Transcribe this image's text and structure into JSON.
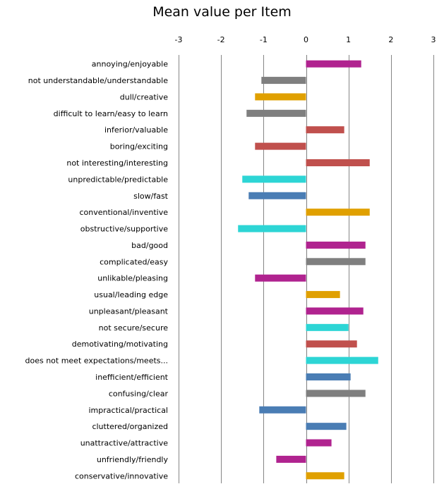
{
  "chart_data": {
    "type": "bar",
    "orientation": "horizontal",
    "title": "Mean value per Item",
    "xlabel": "",
    "ylabel": "",
    "xlim": [
      -3,
      3
    ],
    "xticks": [
      "-3",
      "-2",
      "-1",
      "0",
      "1",
      "2",
      "3"
    ],
    "grid": true,
    "legend": "none",
    "colors": {
      "magenta": "#b0238f",
      "gray": "#7f7f7f",
      "orange": "#e0a000",
      "red": "#c0504d",
      "cyan": "#2dd5d5",
      "blue": "#4a7db4"
    },
    "bars": [
      {
        "label": "annoying/enjoyable",
        "value": 1.3,
        "color": "#b0238f"
      },
      {
        "label": "not understandable/understandable",
        "value": -1.05,
        "color": "#7f7f7f"
      },
      {
        "label": "dull/creative",
        "value": -1.2,
        "color": "#e0a000"
      },
      {
        "label": "difficult to learn/easy to learn",
        "value": -1.4,
        "color": "#7f7f7f"
      },
      {
        "label": "inferior/valuable",
        "value": 0.9,
        "color": "#c0504d"
      },
      {
        "label": "boring/exciting",
        "value": -1.2,
        "color": "#c0504d"
      },
      {
        "label": "not interesting/interesting",
        "value": 1.5,
        "color": "#c0504d"
      },
      {
        "label": "unpredictable/predictable",
        "value": -1.5,
        "color": "#2dd5d5"
      },
      {
        "label": "slow/fast",
        "value": -1.35,
        "color": "#4a7db4"
      },
      {
        "label": "conventional/inventive",
        "value": 1.5,
        "color": "#e0a000"
      },
      {
        "label": "obstructive/supportive",
        "value": -1.6,
        "color": "#2dd5d5"
      },
      {
        "label": "bad/good",
        "value": 1.4,
        "color": "#b0238f"
      },
      {
        "label": "complicated/easy",
        "value": 1.4,
        "color": "#7f7f7f"
      },
      {
        "label": "unlikable/pleasing",
        "value": -1.2,
        "color": "#b0238f"
      },
      {
        "label": "usual/leading edge",
        "value": 0.8,
        "color": "#e0a000"
      },
      {
        "label": "unpleasant/pleasant",
        "value": 1.35,
        "color": "#b0238f"
      },
      {
        "label": "not secure/secure",
        "value": 1.0,
        "color": "#2dd5d5"
      },
      {
        "label": "demotivating/motivating",
        "value": 1.2,
        "color": "#c0504d"
      },
      {
        "label": "does not meet expectations/meets...",
        "value": 1.7,
        "color": "#2dd5d5"
      },
      {
        "label": "inefficient/efficient",
        "value": 1.05,
        "color": "#4a7db4"
      },
      {
        "label": "confusing/clear",
        "value": 1.4,
        "color": "#7f7f7f"
      },
      {
        "label": "impractical/practical",
        "value": -1.1,
        "color": "#4a7db4"
      },
      {
        "label": "cluttered/organized",
        "value": 0.95,
        "color": "#4a7db4"
      },
      {
        "label": "unattractive/attractive",
        "value": 0.6,
        "color": "#b0238f"
      },
      {
        "label": "unfriendly/friendly",
        "value": -0.7,
        "color": "#b0238f"
      },
      {
        "label": "conservative/innovative",
        "value": 0.9,
        "color": "#e0a000"
      }
    ]
  }
}
